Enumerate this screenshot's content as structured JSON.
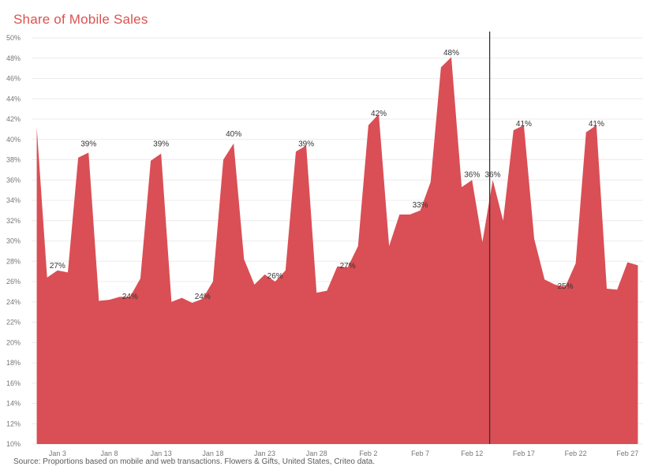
{
  "chart_data": {
    "type": "area",
    "title": "Share of Mobile Sales",
    "source": "Source: Proportions based on mobile and web transactions. Flowers & Gifts, United States, Criteo data.",
    "color": "#d94f55",
    "marker_color": "#333333",
    "ylim": [
      10,
      50
    ],
    "yticks": [
      "10%",
      "12%",
      "14%",
      "16%",
      "18%",
      "20%",
      "22%",
      "24%",
      "26%",
      "28%",
      "30%",
      "32%",
      "34%",
      "36%",
      "38%",
      "40%",
      "42%",
      "44%",
      "46%",
      "48%",
      "50%"
    ],
    "xticks": [
      {
        "label": "Jan 3",
        "x": 3
      },
      {
        "label": "Jan 8",
        "x": 8
      },
      {
        "label": "Jan 13",
        "x": 13
      },
      {
        "label": "Jan 18",
        "x": 18
      },
      {
        "label": "Jan 23",
        "x": 23
      },
      {
        "label": "Jan 28",
        "x": 28
      },
      {
        "label": "Feb 2",
        "x": 33
      },
      {
        "label": "Feb 7",
        "x": 38
      },
      {
        "label": "Feb 12",
        "x": 43
      },
      {
        "label": "Feb 17",
        "x": 48
      },
      {
        "label": "Feb 22",
        "x": 53
      },
      {
        "label": "Feb 27",
        "x": 58
      }
    ],
    "x": [
      1,
      2,
      3,
      4,
      5,
      6,
      7,
      8,
      9,
      10,
      11,
      12,
      13,
      14,
      15,
      16,
      17,
      18,
      19,
      20,
      21,
      22,
      23,
      24,
      25,
      26,
      27,
      28,
      29,
      30,
      31,
      32,
      33,
      34,
      35,
      36,
      37,
      38,
      39,
      40,
      41,
      42,
      43,
      44,
      45,
      46,
      47,
      48,
      49,
      50,
      51,
      52,
      53,
      54,
      55,
      56,
      57,
      58,
      59
    ],
    "values": [
      41.2,
      26.4,
      27.1,
      26.9,
      38.2,
      38.7,
      24.1,
      24.2,
      24.5,
      24.5,
      26.3,
      37.9,
      38.6,
      24.0,
      24.4,
      23.9,
      24.3,
      26.0,
      38.0,
      39.6,
      28.2,
      25.7,
      26.7,
      26.0,
      27.1,
      38.8,
      39.4,
      24.9,
      25.1,
      27.5,
      27.4,
      29.5,
      41.4,
      42.5,
      29.5,
      32.6,
      32.6,
      33.0,
      35.8,
      47.1,
      48.1,
      35.3,
      36.0,
      29.9,
      36.0,
      32.0,
      40.9,
      41.4,
      30.2,
      26.2,
      25.7,
      25.5,
      27.8,
      40.7,
      41.4,
      25.3,
      25.2,
      27.9,
      27.6
    ],
    "data_labels": [
      {
        "x": 3,
        "y": 27,
        "text": "27%"
      },
      {
        "x": 6,
        "y": 39,
        "text": "39%"
      },
      {
        "x": 10,
        "y": 24,
        "text": "24%"
      },
      {
        "x": 13,
        "y": 39,
        "text": "39%"
      },
      {
        "x": 17,
        "y": 24,
        "text": "24%"
      },
      {
        "x": 20,
        "y": 40,
        "text": "40%"
      },
      {
        "x": 24,
        "y": 26,
        "text": "26%"
      },
      {
        "x": 27,
        "y": 39,
        "text": "39%"
      },
      {
        "x": 31,
        "y": 27,
        "text": "27%"
      },
      {
        "x": 34,
        "y": 42,
        "text": "42%"
      },
      {
        "x": 38,
        "y": 33,
        "text": "33%"
      },
      {
        "x": 41,
        "y": 48,
        "text": "48%"
      },
      {
        "x": 43,
        "y": 36,
        "text": "36%"
      },
      {
        "x": 45,
        "y": 36,
        "text": "36%"
      },
      {
        "x": 48,
        "y": 41,
        "text": "41%"
      },
      {
        "x": 52,
        "y": 25,
        "text": "25%"
      },
      {
        "x": 55,
        "y": 41,
        "text": "41%"
      }
    ],
    "reference_line_x": 44.7,
    "grid": true
  }
}
